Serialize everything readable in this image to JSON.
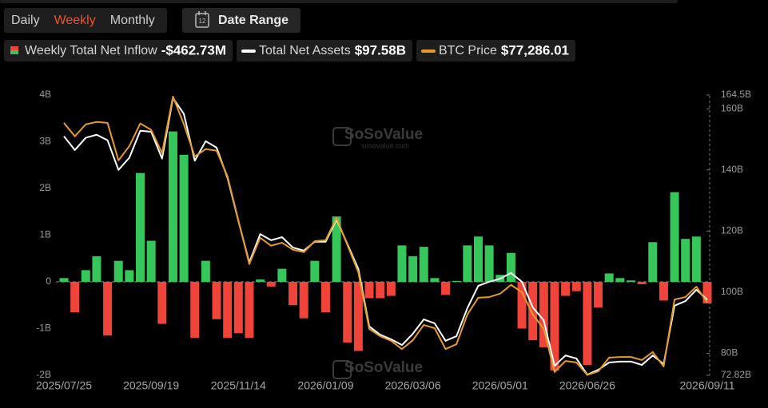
{
  "controls": {
    "periods": [
      "Daily",
      "Weekly",
      "Monthly"
    ],
    "active_period": 1,
    "calendar_day": "12",
    "date_range": "Date Range"
  },
  "chart_data": {
    "type": "bar",
    "watermark": "SoSoValue",
    "watermark_url": "sosovalue.com",
    "categories": [
      "2025/07/25",
      null,
      null,
      null,
      null,
      null,
      null,
      null,
      "2025/09/19",
      null,
      null,
      null,
      null,
      null,
      null,
      null,
      "2025/11/14",
      null,
      null,
      null,
      null,
      null,
      null,
      null,
      "2026/01/09",
      null,
      null,
      null,
      null,
      null,
      null,
      null,
      "2026/03/06",
      null,
      null,
      null,
      null,
      null,
      null,
      null,
      "2026/05/01",
      null,
      null,
      null,
      null,
      null,
      null,
      null,
      "2026/06/26",
      null,
      null,
      null,
      null,
      null,
      null,
      null,
      null,
      null,
      null,
      "2026/09/11"
    ],
    "ylim": [
      -2,
      4
    ],
    "yticks": [
      {
        "value": -2,
        "label": "-2B"
      },
      {
        "value": -1,
        "label": "-1B"
      },
      0,
      {
        "value": 1,
        "label": "1B"
      },
      {
        "value": 2,
        "label": "2B"
      },
      {
        "value": 3,
        "label": "3B"
      },
      {
        "value": 4,
        "label": "4B"
      }
    ],
    "y2lim": [
      72.82,
      164.5
    ],
    "y2ticks": [
      {
        "value": 72.82,
        "label": "72.82B"
      },
      {
        "value": 80,
        "label": "80B"
      },
      {
        "value": 100,
        "label": "100B"
      },
      {
        "value": 120,
        "label": "120B"
      },
      {
        "value": 140,
        "label": "140B"
      },
      {
        "value": 160,
        "label": "160B"
      },
      {
        "value": 164.5,
        "label": "164.5B"
      }
    ],
    "series": [
      {
        "name": "Weekly Total Net Inflow",
        "latest": "-$462.73M",
        "type": "bar",
        "positive_color": "#35c75a",
        "negative_color": "#f0443a",
        "values": [
          0.08,
          -0.65,
          0.25,
          0.55,
          -1.15,
          0.45,
          0.25,
          2.33,
          0.88,
          -0.9,
          3.22,
          2.72,
          -1.2,
          0.45,
          -0.8,
          -1.2,
          -1.1,
          -1.2,
          0.05,
          -0.1,
          0.28,
          -0.5,
          -0.78,
          0.45,
          -0.65,
          1.4,
          -1.3,
          -1.48,
          -0.35,
          -0.35,
          -0.3,
          0.78,
          0.55,
          0.75,
          0.08,
          -0.28,
          0.02,
          0.78,
          0.97,
          0.78,
          0.15,
          0.62,
          -1.0,
          -1.25,
          -1.4,
          -1.9,
          -0.3,
          -0.2,
          -1.78,
          -0.55,
          0.18,
          0.08,
          0.03,
          -0.05,
          0.85,
          -0.4,
          1.92,
          0.92,
          0.97,
          -0.46273
        ]
      },
      {
        "name": "Total Net Assets",
        "latest": "$97.58B",
        "type": "line",
        "axis": "y2",
        "color": "#ffffff",
        "values": [
          151,
          146.5,
          150.5,
          151.5,
          149.7,
          140,
          144,
          152.8,
          152.5,
          143.7,
          163.5,
          158.3,
          143,
          149.4,
          147.3,
          137.4,
          123.3,
          109.7,
          119,
          117,
          118,
          114.6,
          113.6,
          116.5,
          116.5,
          123.8,
          115.7,
          107.6,
          88.8,
          86.1,
          84.6,
          82.7,
          86.4,
          91.1,
          89.8,
          84.1,
          85.6,
          94.8,
          102.1,
          103.4,
          104.4,
          106.3,
          103.4,
          95,
          90.8,
          75.9,
          79.3,
          78.3,
          73,
          74.6,
          77,
          77.3,
          77.3,
          76.2,
          79.3,
          76.5,
          95.6,
          97.1,
          100.8,
          97.58
        ]
      },
      {
        "name": "BTC Price",
        "latest": "$77,286.01",
        "type": "line",
        "axis": "y2",
        "color": "#e59b2c",
        "values": [
          155.4,
          151,
          154.9,
          155.7,
          155.4,
          143.1,
          147.8,
          155.2,
          153.1,
          145.5,
          164,
          154.9,
          144.4,
          146.8,
          146.3,
          137.9,
          123.5,
          109.2,
          117.8,
          115.2,
          116.2,
          113.9,
          113.1,
          116.7,
          117,
          124.3,
          115.4,
          106.5,
          88,
          85.6,
          84.1,
          81.4,
          84.3,
          89.3,
          88.2,
          81.4,
          83,
          92.7,
          98.2,
          98.4,
          99.5,
          102.4,
          100,
          92.7,
          88,
          73.9,
          77.5,
          77,
          72.9,
          74.1,
          78.6,
          78.8,
          78.8,
          77.8,
          80.4,
          75.7,
          97.6,
          98.4,
          101.8,
          96.6
        ]
      }
    ]
  }
}
